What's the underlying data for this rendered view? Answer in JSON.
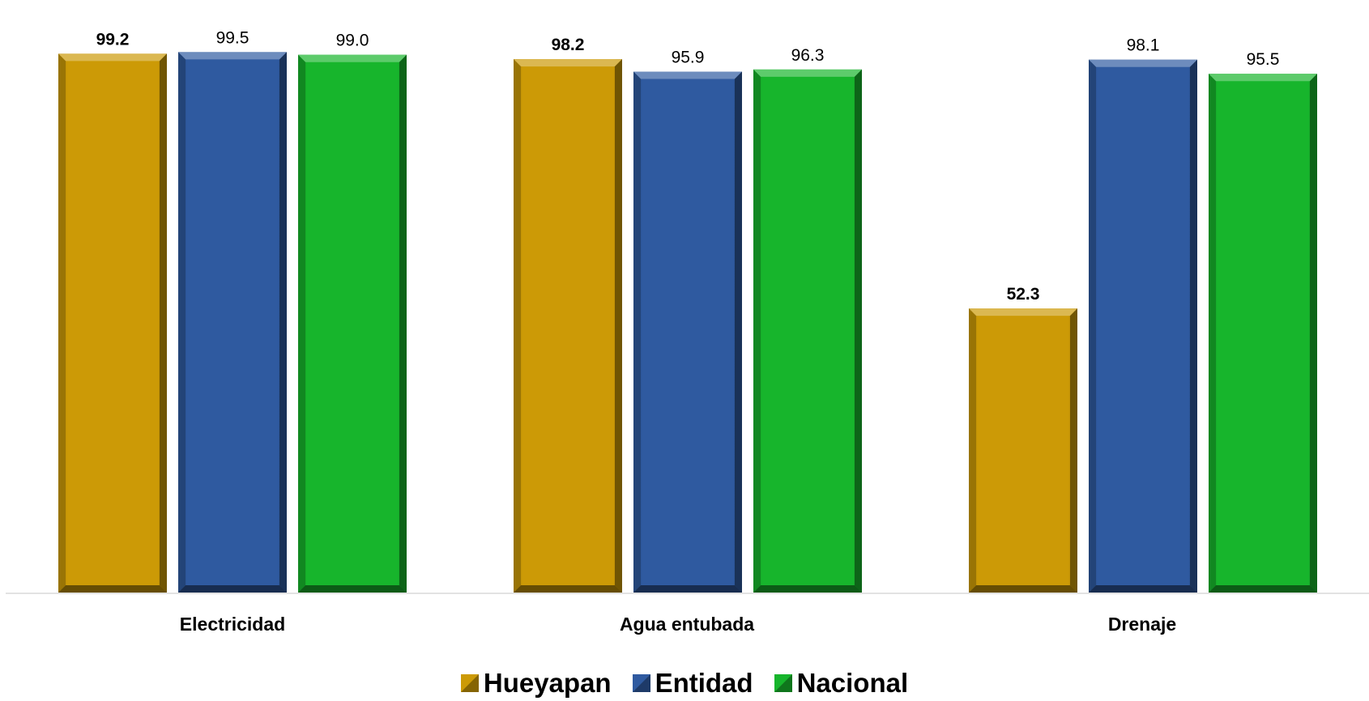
{
  "chart_data": {
    "type": "bar",
    "categories": [
      "Electricidad",
      "Agua entubada",
      "Drenaje"
    ],
    "series": [
      {
        "name": "Hueyapan",
        "values": [
          99.2,
          98.2,
          52.3
        ],
        "labels": [
          "99.2",
          "98.2",
          "52.3"
        ],
        "color": "#cc9a06",
        "bold_labels": true
      },
      {
        "name": "Entidad",
        "values": [
          99.5,
          95.9,
          98.1
        ],
        "labels": [
          "99.5",
          "95.9",
          "98.1"
        ],
        "color": "#2f5aa0",
        "bold_labels": false
      },
      {
        "name": "Nacional",
        "values": [
          99.0,
          96.3,
          95.5
        ],
        "labels": [
          "99.0",
          "96.3",
          "95.5"
        ],
        "color": "#17b52c",
        "bold_labels": false
      }
    ],
    "title": "",
    "xlabel": "",
    "ylabel": "",
    "ylim": [
      0,
      100
    ],
    "grid": false,
    "legend_position": "bottom"
  }
}
